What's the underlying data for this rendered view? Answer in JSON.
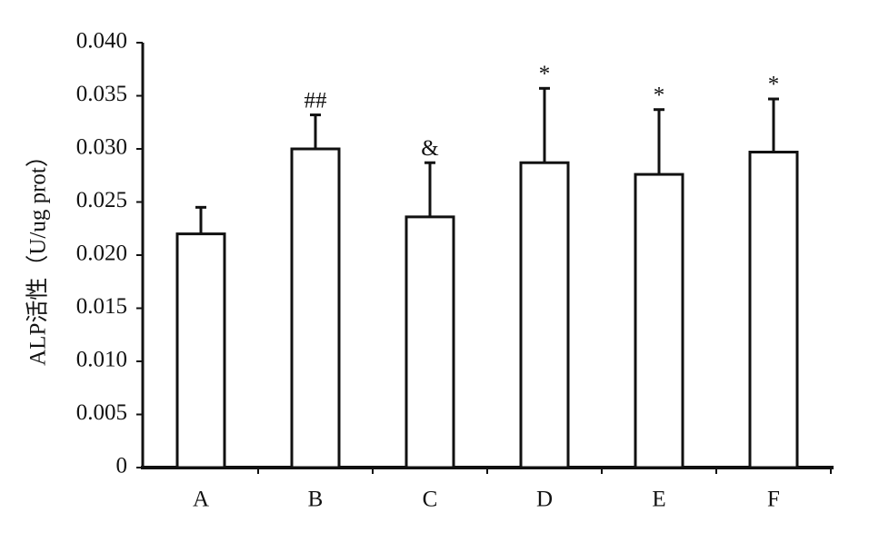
{
  "chart_data": {
    "type": "bar",
    "y_label": "ALP活性（U/ug prot）",
    "categories": [
      "A",
      "B",
      "C",
      "D",
      "E",
      "F"
    ],
    "values": [
      0.022,
      0.03,
      0.0236,
      0.0287,
      0.0276,
      0.0297
    ],
    "errors": [
      0.0025,
      0.0032,
      0.0051,
      0.007,
      0.0061,
      0.005
    ],
    "annotations": [
      null,
      "##",
      "&",
      "*",
      "*",
      "*"
    ],
    "color": "#ffffff",
    "ylim": [
      0,
      0.04
    ],
    "yticks": [
      0,
      {
        "value": 0.005,
        "label": "0.005"
      },
      {
        "value": 0.01,
        "label": "0.010"
      },
      {
        "value": 0.015,
        "label": "0.015"
      },
      {
        "value": 0.02,
        "label": "0.020"
      },
      {
        "value": 0.025,
        "label": "0.025"
      },
      {
        "value": 0.03,
        "label": "0.030"
      },
      {
        "value": 0.035,
        "label": "0.035"
      },
      {
        "value": 0.04,
        "label": "0.040"
      }
    ]
  }
}
